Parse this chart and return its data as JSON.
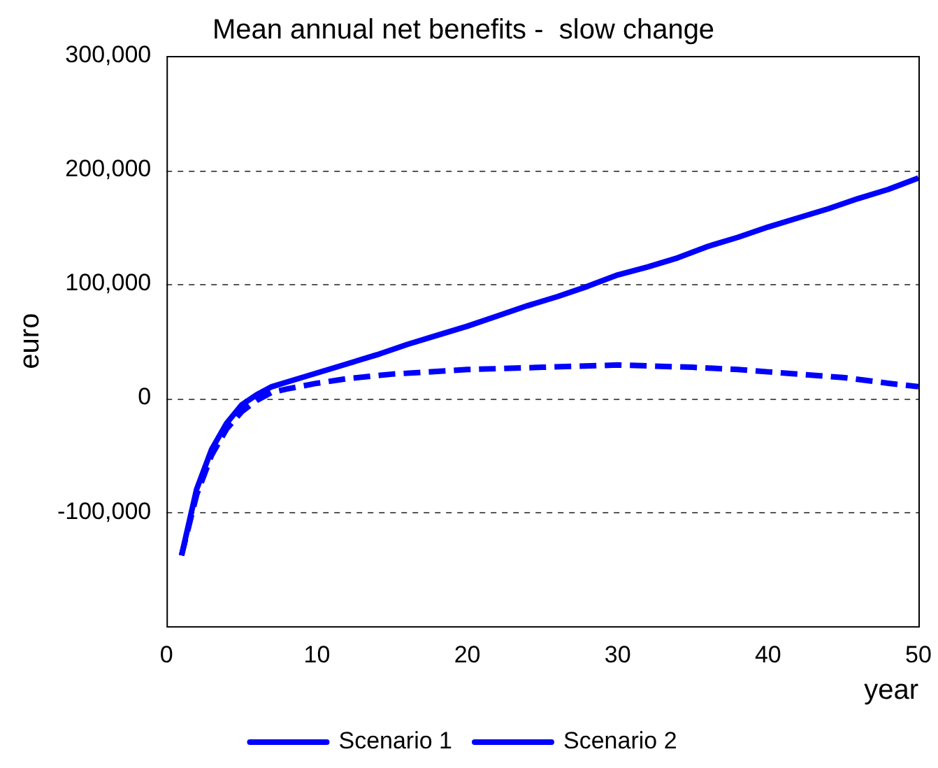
{
  "chart_data": {
    "type": "line",
    "title": "Mean annual net benefits -  slow change",
    "xlabel": "year",
    "ylabel": "euro",
    "xlim": [
      0,
      50
    ],
    "xticks": [
      0,
      10,
      20,
      30,
      40,
      50
    ],
    "ylim": [
      -200000,
      300000
    ],
    "yticks": [
      {
        "value": -200000,
        "label": null
      },
      {
        "value": -100000,
        "label": "-100,000"
      },
      0,
      {
        "value": 100000,
        "label": "100,000"
      },
      {
        "value": 200000,
        "label": "200,000"
      },
      {
        "value": 300000,
        "label": "300,000"
      }
    ],
    "grid": "y",
    "legend": "bottom",
    "marker": "none",
    "series": [
      {
        "name": "Scenario 1",
        "color": "#0000ff",
        "line_style": "solid",
        "x": [
          1,
          2,
          3,
          4,
          5,
          6,
          7,
          8,
          9,
          10,
          12,
          14,
          16,
          18,
          20,
          22,
          24,
          26,
          28,
          30,
          32,
          34,
          36,
          38,
          40,
          42,
          44,
          46,
          48,
          50
        ],
        "values": [
          -138000,
          -80000,
          -45000,
          -22000,
          -6000,
          3000,
          10000,
          14000,
          18000,
          22000,
          30000,
          38000,
          47000,
          55000,
          63000,
          72000,
          81000,
          89000,
          98000,
          108000,
          115000,
          123000,
          133000,
          141000,
          150000,
          158000,
          166000,
          175000,
          183000,
          193000
        ]
      },
      {
        "name": "Scenario 2",
        "color": "#0000ff",
        "line_style": "dashed",
        "x": [
          1,
          2,
          3,
          4,
          5,
          6,
          7,
          8,
          10,
          12,
          15,
          20,
          25,
          30,
          35,
          38,
          40,
          42,
          45,
          48,
          50
        ],
        "values": [
          -138000,
          -85000,
          -50000,
          -27000,
          -12000,
          -2000,
          5000,
          8000,
          13000,
          17000,
          21000,
          25000,
          27000,
          29000,
          27000,
          25000,
          23000,
          21000,
          18000,
          13000,
          10000
        ]
      }
    ]
  }
}
